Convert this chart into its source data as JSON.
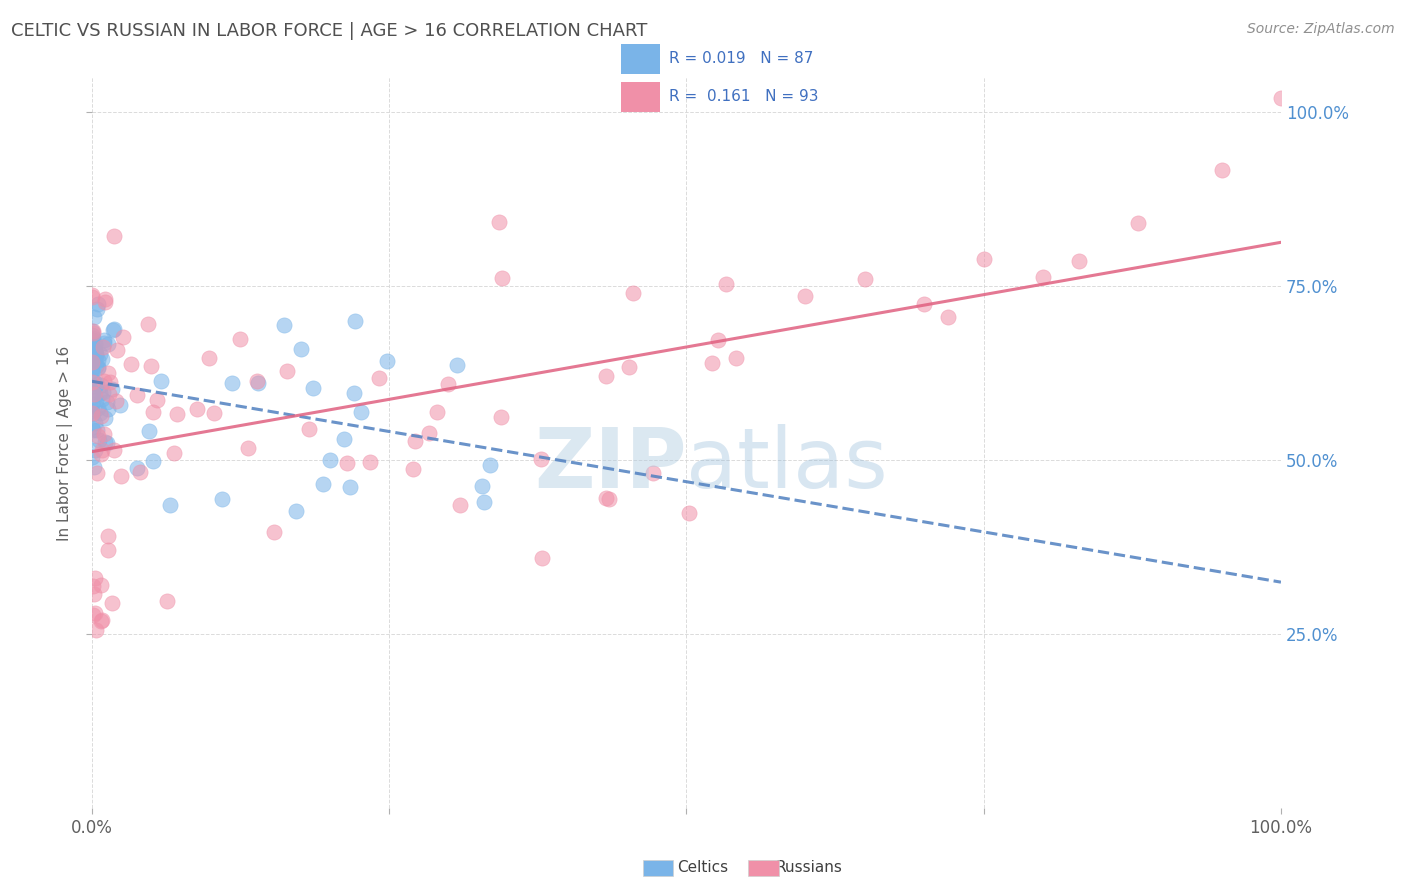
{
  "title": "CELTIC VS RUSSIAN IN LABOR FORCE | AGE > 16 CORRELATION CHART",
  "source": "Source: ZipAtlas.com",
  "ylabel": "In Labor Force | Age > 16",
  "xlim": [
    0.0,
    1.0
  ],
  "ylim": [
    0.0,
    1.05
  ],
  "celtics_scatter_color": "#7ab4e8",
  "russians_scatter_color": "#f090a8",
  "trend_celtics_color": "#5080c0",
  "trend_russians_color": "#e06080",
  "background_color": "#ffffff",
  "grid_color": "#d8d8d8",
  "title_color": "#505050",
  "axis_label_color": "#606060",
  "right_tick_color": "#5090d0",
  "watermark_zip_color": "#b0cce0",
  "watermark_atlas_color": "#90b8d8",
  "R_celtics": 0.019,
  "N_celtics": 87,
  "R_russians": 0.161,
  "N_russians": 93,
  "legend_text_color": "#4070c0",
  "legend_border_color": "#d0d0d0"
}
